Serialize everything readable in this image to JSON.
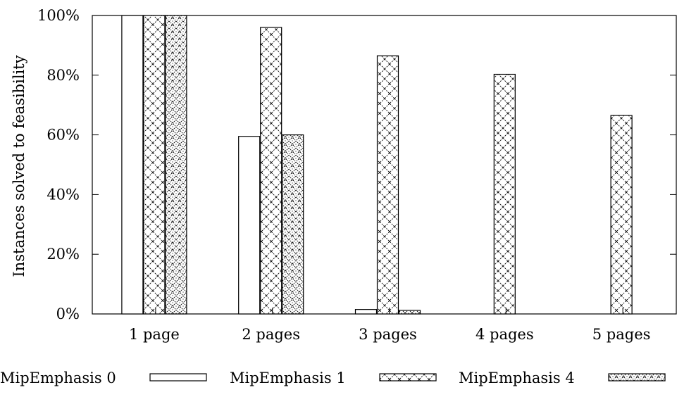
{
  "chart_data": {
    "type": "bar",
    "title": "",
    "xlabel": "",
    "ylabel": "Instances solved to feasibility",
    "ylim": [
      0,
      100
    ],
    "y_ticks": [
      "0%",
      "20%",
      "40%",
      "60%",
      "80%",
      "100%"
    ],
    "categories": [
      "1 page",
      "2 pages",
      "3 pages",
      "4 pages",
      "5 pages"
    ],
    "grid": false,
    "legend_position": "bottom",
    "series": [
      {
        "name": "MipEmphasis 0",
        "pattern": "empty",
        "values": [
          100,
          59.5,
          1.5,
          0,
          0
        ]
      },
      {
        "name": "MipEmphasis 1",
        "pattern": "crosshatch",
        "values": [
          100,
          96,
          86.5,
          80.3,
          66.5
        ]
      },
      {
        "name": "MipEmphasis 4",
        "pattern": "dense-crosshatch",
        "values": [
          100,
          60,
          1.2,
          0,
          0
        ]
      }
    ]
  }
}
